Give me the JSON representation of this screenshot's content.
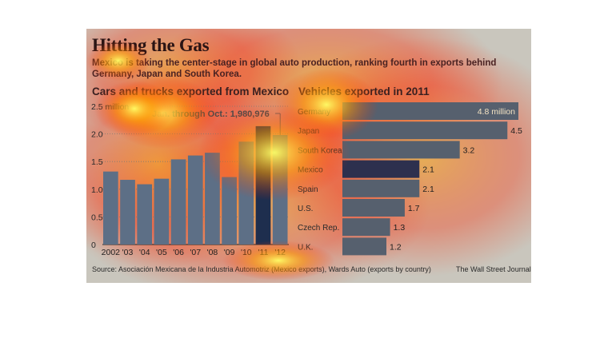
{
  "header": {
    "title": "Hitting the Gas",
    "subtitle": "Mexico is taking the center-stage in global auto production, ranking fourth in exports behind Germany, Japan and South Korea."
  },
  "footer": {
    "source": "Source:  Asociación Mexicana de la Industria Automotriz (Mexico exports), Wards Auto (exports by country)",
    "credit": "The Wall Street Journal"
  },
  "colors": {
    "background": "#c9c6bd",
    "bar": "#5d6f86",
    "bar_highlight": "#1e2e4e",
    "hbar": "#56606e",
    "hbar_mexico": "#2d304e",
    "heat_hot": "#ffff66",
    "heat_warm": "#ff9a00",
    "heat_cool": "#ff2a00"
  },
  "chart_data": [
    {
      "type": "bar",
      "title": "Cars and trucks exported from Mexico",
      "categories": [
        "2002",
        "'03",
        "'04",
        "'05",
        "'06",
        "'07",
        "'08",
        "'09",
        "'10",
        "'11",
        "'12"
      ],
      "values": [
        1.32,
        1.17,
        1.09,
        1.19,
        1.54,
        1.61,
        1.66,
        1.22,
        1.86,
        2.14,
        1.98
      ],
      "highlight_index": 9,
      "yticks": [
        "0",
        "0.5",
        "1.0",
        "1.5",
        "2.0",
        "2.5 million"
      ],
      "ylim": [
        0,
        2.5
      ],
      "annotation": "Jan. through Oct.: 1,980,976",
      "grid": "dotted"
    },
    {
      "type": "bar",
      "orientation": "horizontal",
      "title": "Vehicles exported in 2011",
      "categories": [
        "Germany",
        "Japan",
        "South Korea",
        "Mexico",
        "Spain",
        "U.S.",
        "Czech Rep.",
        "U.K."
      ],
      "values": [
        4.8,
        4.5,
        3.2,
        2.1,
        2.1,
        1.7,
        1.3,
        1.2
      ],
      "value_labels": [
        "4.8 million",
        "4.5",
        "3.2",
        "2.1",
        "2.1",
        "1.7",
        "1.3",
        "1.2"
      ],
      "highlight_index": 3,
      "xlim": [
        0,
        4.8
      ]
    }
  ]
}
